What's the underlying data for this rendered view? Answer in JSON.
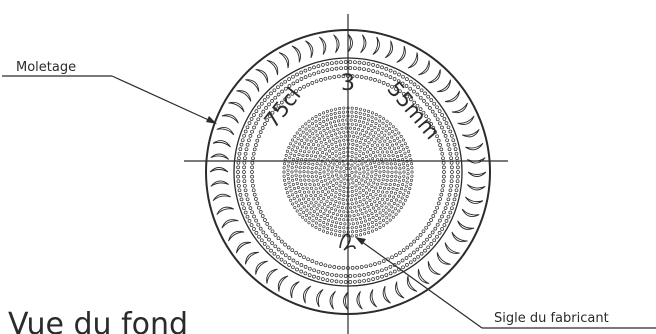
{
  "drawing": {
    "view_title": "Vue du fond",
    "center_mark": "3",
    "volume_mark": "75cl",
    "diameter_mark": "55mm",
    "callouts": [
      {
        "label": "Moletage"
      },
      {
        "label": "Sigle du fabricant"
      }
    ]
  }
}
